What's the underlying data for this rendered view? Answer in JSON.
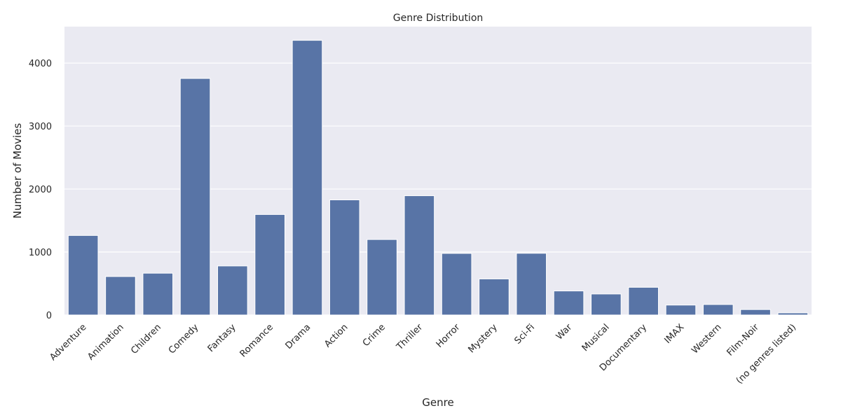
{
  "chart_data": {
    "type": "bar",
    "title": "Genre Distribution",
    "xlabel": "Genre",
    "ylabel": "Number of Movies",
    "categories": [
      "Adventure",
      "Animation",
      "Children",
      "Comedy",
      "Fantasy",
      "Romance",
      "Drama",
      "Action",
      "Crime",
      "Thriller",
      "Horror",
      "Mystery",
      "Sci-Fi",
      "War",
      "Musical",
      "Documentary",
      "IMAX",
      "Western",
      "Film-Noir",
      "(no genres listed)"
    ],
    "values": [
      1263,
      611,
      664,
      3756,
      779,
      1596,
      4361,
      1828,
      1199,
      1894,
      978,
      573,
      980,
      382,
      334,
      440,
      158,
      167,
      87,
      34
    ],
    "ylim": [
      0,
      4579
    ],
    "yticks": [
      0,
      1000,
      2000,
      3000,
      4000
    ],
    "grid": true,
    "colors": {
      "bar": "#5874a6",
      "background": "#eaeaf2",
      "grid": "#ffffff"
    }
  }
}
